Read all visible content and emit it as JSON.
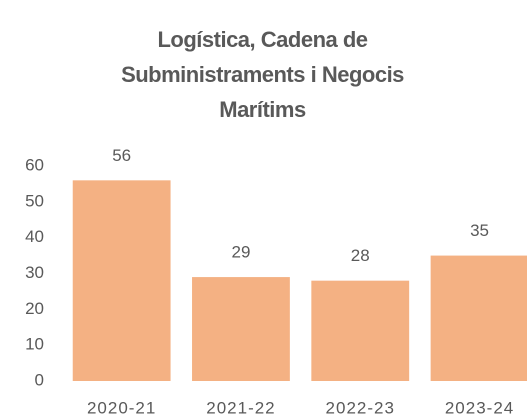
{
  "chart_data": {
    "type": "bar",
    "title": "Logística, Cadena de Subministraments i Negocis Marítims",
    "categories": [
      "2020-21",
      "2021-22",
      "2022-23",
      "2023-24"
    ],
    "values": [
      56,
      29,
      28,
      35
    ],
    "color": "#f4b183",
    "ylim": [
      0,
      60
    ],
    "yticks": [
      0,
      10,
      20,
      30,
      40,
      50,
      60
    ],
    "grid": false
  }
}
